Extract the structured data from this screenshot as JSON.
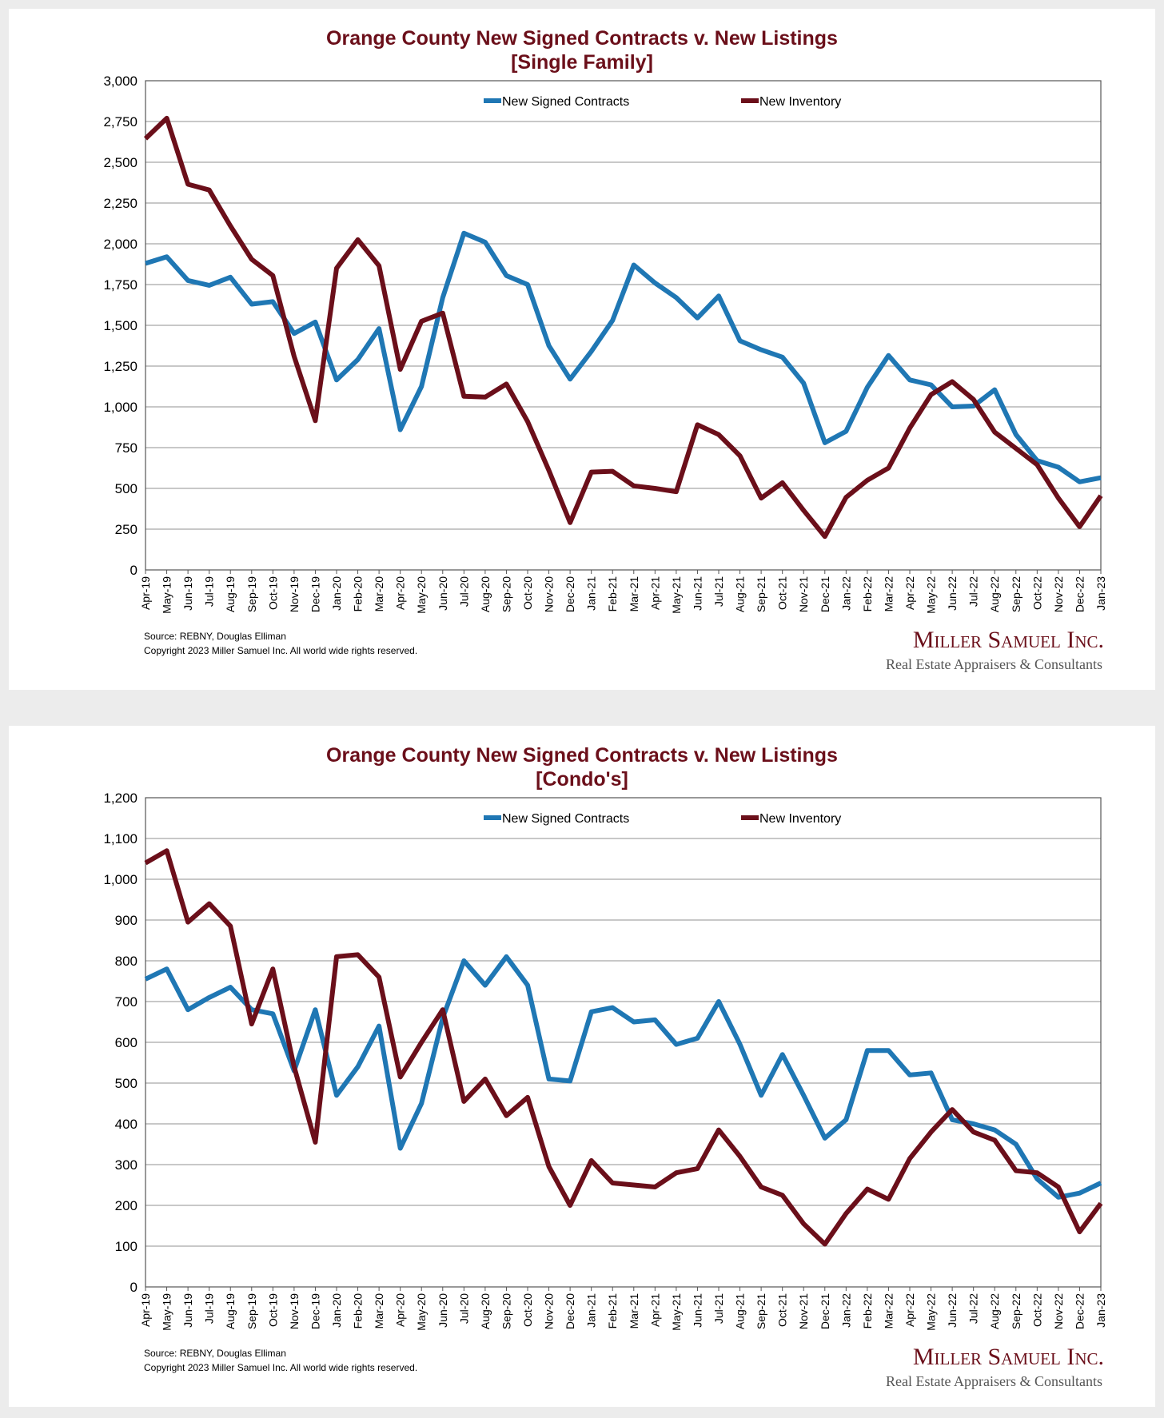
{
  "chart_data": [
    {
      "type": "line",
      "title": "Orange County New Signed Contracts v. New Listings",
      "subtitle": "[Single Family]",
      "xlabel": "",
      "ylabel": "",
      "ylim": [
        0,
        3000
      ],
      "yticks": [
        0,
        250,
        500,
        750,
        1000,
        1250,
        1500,
        1750,
        2000,
        2250,
        2500,
        2750,
        3000
      ],
      "grid": true,
      "legend": "top-center",
      "categories": [
        "Apr-19",
        "May-19",
        "Jun-19",
        "Jul-19",
        "Aug-19",
        "Sep-19",
        "Oct-19",
        "Nov-19",
        "Dec-19",
        "Jan-20",
        "Feb-20",
        "Mar-20",
        "Apr-20",
        "May-20",
        "Jun-20",
        "Jul-20",
        "Aug-20",
        "Sep-20",
        "Oct-20",
        "Nov-20",
        "Dec-20",
        "Jan-21",
        "Feb-21",
        "Mar-21",
        "Apr-21",
        "May-21",
        "Jun-21",
        "Jul-21",
        "Aug-21",
        "Sep-21",
        "Oct-21",
        "Nov-21",
        "Dec-21",
        "Jan-22",
        "Feb-22",
        "Mar-22",
        "Apr-22",
        "May-22",
        "Jun-22",
        "Jul-22",
        "Aug-22",
        "Sep-22",
        "Oct-22",
        "Nov-22",
        "Dec-22",
        "Jan-23"
      ],
      "series": [
        {
          "name": "New Signed Contracts",
          "color": "#1f77b4",
          "values": [
            1880,
            1920,
            1775,
            1745,
            1795,
            1630,
            1645,
            1450,
            1520,
            1165,
            1290,
            1480,
            860,
            1125,
            1670,
            2065,
            2010,
            1805,
            1750,
            1375,
            1170,
            1340,
            1530,
            1870,
            1760,
            1670,
            1545,
            1680,
            1405,
            1350,
            1305,
            1145,
            780,
            850,
            1120,
            1315,
            1165,
            1135,
            1000,
            1005,
            1105,
            830,
            670,
            630,
            540,
            565
          ]
        },
        {
          "name": "New Inventory",
          "color": "#6b0f1a",
          "values": [
            2645,
            2770,
            2365,
            2330,
            2110,
            1905,
            1805,
            1310,
            915,
            1850,
            2025,
            1865,
            1230,
            1525,
            1575,
            1065,
            1060,
            1140,
            910,
            610,
            290,
            600,
            605,
            515,
            500,
            480,
            890,
            830,
            700,
            440,
            535,
            365,
            205,
            445,
            550,
            625,
            870,
            1075,
            1155,
            1045,
            845,
            745,
            645,
            440,
            265,
            455
          ]
        }
      ],
      "source": "Source: REBNY, Douglas Elliman",
      "copyright": "Copyright 2023 Miller Samuel Inc.  All world wide rights reserved.",
      "logo": "Miller Samuel Inc.",
      "logo_sub": "Real Estate Appraisers & Consultants"
    },
    {
      "type": "line",
      "title": "Orange County New Signed Contracts v. New Listings",
      "subtitle": "[Condo's]",
      "xlabel": "",
      "ylabel": "",
      "ylim": [
        0,
        1200
      ],
      "yticks": [
        0,
        100,
        200,
        300,
        400,
        500,
        600,
        700,
        800,
        900,
        1000,
        1100,
        1200
      ],
      "grid": true,
      "legend": "top-center",
      "categories": [
        "Apr-19",
        "May-19",
        "Jun-19",
        "Jul-19",
        "Aug-19",
        "Sep-19",
        "Oct-19",
        "Nov-19",
        "Dec-19",
        "Jan-20",
        "Feb-20",
        "Mar-20",
        "Apr-20",
        "May-20",
        "Jun-20",
        "Jul-20",
        "Aug-20",
        "Sep-20",
        "Oct-20",
        "Nov-20",
        "Dec-20",
        "Jan-21",
        "Feb-21",
        "Mar-21",
        "Apr-21",
        "May-21",
        "Jun-21",
        "Jul-21",
        "Aug-21",
        "Sep-21",
        "Oct-21",
        "Nov-21",
        "Dec-21",
        "Jan-22",
        "Feb-22",
        "Mar-22",
        "Apr-22",
        "May-22",
        "Jun-22",
        "Jul-22",
        "Aug-22",
        "Sep-22",
        "Oct-22",
        "Nov-22",
        "Dec-22",
        "Jan-23"
      ],
      "series": [
        {
          "name": "New Signed Contracts",
          "color": "#1f77b4",
          "values": [
            755,
            780,
            680,
            710,
            735,
            680,
            670,
            530,
            680,
            470,
            540,
            640,
            340,
            450,
            660,
            800,
            740,
            810,
            740,
            510,
            505,
            675,
            685,
            650,
            655,
            595,
            610,
            700,
            595,
            470,
            570,
            470,
            365,
            410,
            580,
            580,
            520,
            525,
            410,
            400,
            385,
            350,
            265,
            220,
            230,
            255
          ]
        },
        {
          "name": "New Inventory",
          "color": "#6b0f1a",
          "values": [
            1040,
            1070,
            895,
            940,
            885,
            645,
            780,
            540,
            355,
            810,
            815,
            760,
            515,
            600,
            680,
            455,
            510,
            420,
            465,
            295,
            200,
            310,
            255,
            250,
            245,
            280,
            290,
            385,
            320,
            245,
            225,
            155,
            105,
            180,
            240,
            215,
            315,
            380,
            435,
            380,
            360,
            285,
            280,
            245,
            135,
            205
          ]
        }
      ],
      "source": "Source: REBNY, Douglas Elliman",
      "copyright": "Copyright 2023 Miller Samuel Inc.  All world wide rights reserved.",
      "logo": "Miller Samuel Inc.",
      "logo_sub": "Real Estate Appraisers & Consultants"
    }
  ]
}
